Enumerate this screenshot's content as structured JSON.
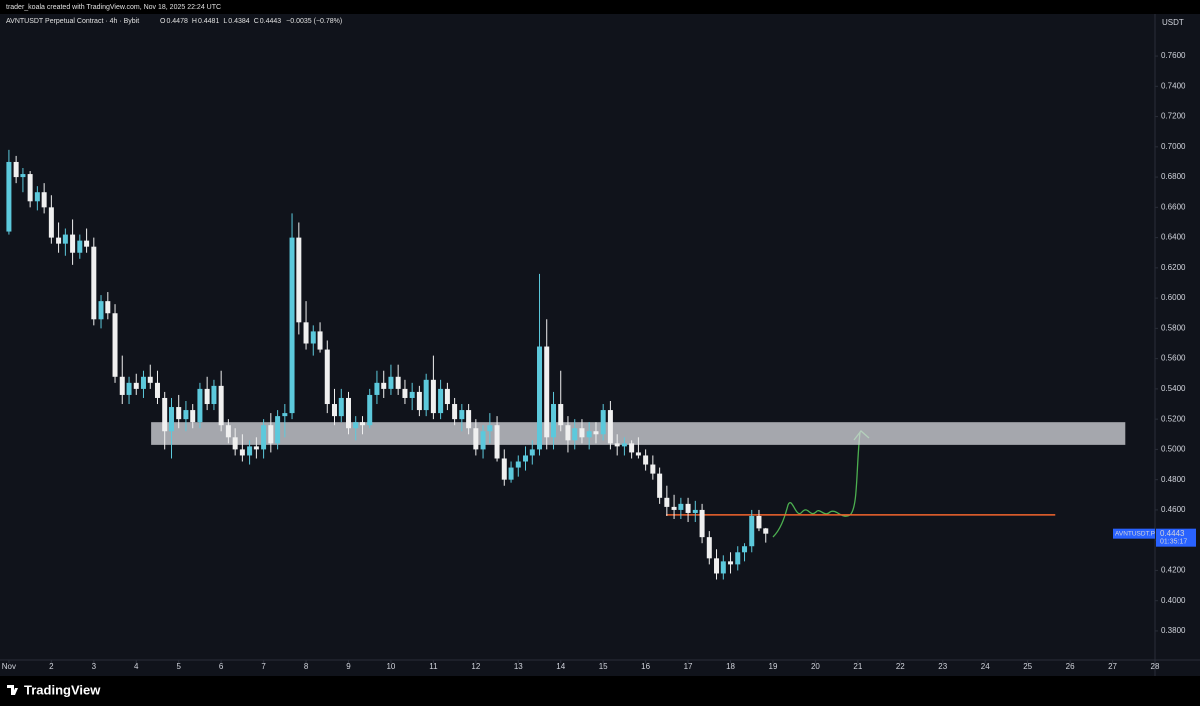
{
  "chart_data": {
    "type": "candlestick",
    "credit": "trader_koala created with TradingView.com, Nov 18, 2025 22:24 UTC",
    "symbol_title": "AVNTUSDT Perpetual Contract · 4h · Bybit",
    "legend_values": [
      {
        "label": "O",
        "value": "0.4478"
      },
      {
        "label": "H",
        "value": "0.4481"
      },
      {
        "label": "L",
        "value": "0.4384"
      },
      {
        "label": "C",
        "value": "0.4443"
      },
      {
        "label": "",
        "value": "−0.0035 (−0.78%)"
      }
    ],
    "axis_unit": "USDT",
    "price_tag": {
      "symbol": "AVNTUSDT.P",
      "value": 0.4443,
      "timer": "01:35:17",
      "color": "#2962ff"
    },
    "footer_brand": "TradingView",
    "up_color": "#5cc9dc",
    "down_color": "#f0f0f0",
    "x": [
      1,
      1.17,
      1.33,
      1.5,
      1.67,
      1.83,
      2,
      2.17,
      2.33,
      2.5,
      2.67,
      2.83,
      3,
      3.17,
      3.33,
      3.5,
      3.67,
      3.83,
      4,
      4.17,
      4.33,
      4.5,
      4.67,
      4.83,
      5,
      5.17,
      5.33,
      5.5,
      5.67,
      5.83,
      6,
      6.17,
      6.33,
      6.5,
      6.67,
      6.83,
      7,
      7.17,
      7.33,
      7.5,
      7.67,
      7.83,
      8,
      8.17,
      8.33,
      8.5,
      8.67,
      8.83,
      9,
      9.17,
      9.33,
      9.5,
      9.67,
      9.83,
      10,
      10.17,
      10.33,
      10.5,
      10.67,
      10.83,
      11,
      11.17,
      11.33,
      11.5,
      11.67,
      11.83,
      12,
      12.17,
      12.33,
      12.5,
      12.67,
      12.83,
      13,
      13.17,
      13.33,
      13.5,
      13.67,
      13.83,
      14,
      14.17,
      14.33,
      14.5,
      14.67,
      14.83,
      15,
      15.17,
      15.33,
      15.5,
      15.67,
      15.83,
      16,
      16.17,
      16.33,
      16.5,
      16.67,
      16.83,
      17,
      17.17,
      17.33,
      17.5,
      17.67,
      17.83,
      18,
      18.17,
      18.33,
      18.5,
      18.67,
      18.83
    ],
    "open": [
      0.644,
      0.69,
      0.68,
      0.682,
      0.664,
      0.67,
      0.66,
      0.64,
      0.636,
      0.642,
      0.63,
      0.638,
      0.634,
      0.586,
      0.598,
      0.59,
      0.548,
      0.536,
      0.544,
      0.54,
      0.548,
      0.544,
      0.534,
      0.512,
      0.528,
      0.52,
      0.526,
      0.518,
      0.54,
      0.53,
      0.542,
      0.516,
      0.508,
      0.5,
      0.496,
      0.502,
      0.5,
      0.516,
      0.504,
      0.522,
      0.524,
      0.64,
      0.584,
      0.57,
      0.578,
      0.566,
      0.53,
      0.522,
      0.534,
      0.514,
      0.518,
      0.516,
      0.536,
      0.544,
      0.54,
      0.548,
      0.54,
      0.534,
      0.538,
      0.526,
      0.546,
      0.524,
      0.54,
      0.53,
      0.52,
      0.526,
      0.514,
      0.5,
      0.512,
      0.516,
      0.494,
      0.48,
      0.488,
      0.492,
      0.496,
      0.5,
      0.568,
      0.508,
      0.53,
      0.516,
      0.506,
      0.514,
      0.508,
      0.512,
      0.51,
      0.526,
      0.504,
      0.502,
      0.504,
      0.498,
      0.496,
      0.49,
      0.484,
      0.468,
      0.462,
      0.46,
      0.464,
      0.458,
      0.46,
      0.442,
      0.428,
      0.418,
      0.426,
      0.424,
      0.432,
      0.436,
      0.456,
      0.4478
    ],
    "high": [
      0.698,
      0.694,
      0.686,
      0.684,
      0.674,
      0.676,
      0.668,
      0.65,
      0.646,
      0.652,
      0.642,
      0.646,
      0.64,
      0.602,
      0.604,
      0.596,
      0.562,
      0.548,
      0.55,
      0.552,
      0.556,
      0.552,
      0.538,
      0.534,
      0.536,
      0.532,
      0.53,
      0.544,
      0.548,
      0.546,
      0.552,
      0.52,
      0.514,
      0.51,
      0.506,
      0.508,
      0.52,
      0.524,
      0.526,
      0.53,
      0.656,
      0.65,
      0.598,
      0.582,
      0.584,
      0.572,
      0.54,
      0.54,
      0.538,
      0.522,
      0.522,
      0.54,
      0.552,
      0.552,
      0.556,
      0.556,
      0.546,
      0.544,
      0.542,
      0.55,
      0.562,
      0.546,
      0.544,
      0.534,
      0.53,
      0.53,
      0.52,
      0.516,
      0.524,
      0.522,
      0.5,
      0.492,
      0.496,
      0.502,
      0.506,
      0.616,
      0.586,
      0.538,
      0.552,
      0.522,
      0.52,
      0.52,
      0.518,
      0.518,
      0.53,
      0.532,
      0.51,
      0.508,
      0.506,
      0.508,
      0.5,
      0.496,
      0.488,
      0.476,
      0.47,
      0.468,
      0.468,
      0.466,
      0.464,
      0.446,
      0.434,
      0.43,
      0.432,
      0.436,
      0.438,
      0.46,
      0.46,
      0.4481
    ],
    "low": [
      0.642,
      0.676,
      0.67,
      0.66,
      0.658,
      0.656,
      0.636,
      0.63,
      0.628,
      0.622,
      0.626,
      0.63,
      0.582,
      0.58,
      0.586,
      0.544,
      0.53,
      0.53,
      0.536,
      0.534,
      0.54,
      0.53,
      0.5,
      0.494,
      0.514,
      0.512,
      0.514,
      0.514,
      0.526,
      0.526,
      0.512,
      0.504,
      0.496,
      0.492,
      0.49,
      0.494,
      0.494,
      0.498,
      0.5,
      0.508,
      0.52,
      0.576,
      0.566,
      0.562,
      0.564,
      0.524,
      0.516,
      0.518,
      0.51,
      0.506,
      0.51,
      0.514,
      0.53,
      0.534,
      0.536,
      0.536,
      0.53,
      0.526,
      0.522,
      0.522,
      0.52,
      0.52,
      0.526,
      0.516,
      0.512,
      0.51,
      0.496,
      0.494,
      0.504,
      0.492,
      0.476,
      0.478,
      0.482,
      0.486,
      0.49,
      0.496,
      0.5,
      0.5,
      0.512,
      0.498,
      0.5,
      0.504,
      0.5,
      0.504,
      0.506,
      0.5,
      0.496,
      0.496,
      0.494,
      0.494,
      0.486,
      0.48,
      0.464,
      0.456,
      0.454,
      0.454,
      0.452,
      0.452,
      0.438,
      0.424,
      0.414,
      0.414,
      0.418,
      0.42,
      0.426,
      0.432,
      0.446,
      0.4384
    ],
    "close": [
      0.69,
      0.68,
      0.682,
      0.664,
      0.67,
      0.66,
      0.64,
      0.636,
      0.642,
      0.63,
      0.638,
      0.634,
      0.586,
      0.598,
      0.59,
      0.548,
      0.536,
      0.544,
      0.54,
      0.548,
      0.544,
      0.534,
      0.512,
      0.528,
      0.52,
      0.526,
      0.518,
      0.54,
      0.53,
      0.542,
      0.516,
      0.508,
      0.5,
      0.496,
      0.502,
      0.5,
      0.516,
      0.504,
      0.522,
      0.524,
      0.64,
      0.584,
      0.57,
      0.578,
      0.566,
      0.53,
      0.522,
      0.534,
      0.514,
      0.518,
      0.516,
      0.536,
      0.544,
      0.54,
      0.548,
      0.54,
      0.534,
      0.538,
      0.526,
      0.546,
      0.524,
      0.54,
      0.53,
      0.52,
      0.526,
      0.514,
      0.5,
      0.512,
      0.516,
      0.494,
      0.48,
      0.488,
      0.492,
      0.496,
      0.5,
      0.568,
      0.508,
      0.53,
      0.516,
      0.506,
      0.514,
      0.508,
      0.512,
      0.51,
      0.526,
      0.504,
      0.502,
      0.504,
      0.498,
      0.496,
      0.49,
      0.484,
      0.468,
      0.462,
      0.46,
      0.464,
      0.458,
      0.46,
      0.442,
      0.428,
      0.418,
      0.426,
      0.424,
      0.432,
      0.436,
      0.456,
      0.4478,
      0.4443
    ],
    "zone": {
      "x": [
        4.35,
        27.3
      ],
      "y": [
        0.503,
        0.518
      ],
      "color": "#d7d9df"
    },
    "level": {
      "x": [
        16.48,
        25.65
      ],
      "y": 0.4567,
      "color": "#f2642c"
    },
    "xlim": [
      0.79,
      28.0
    ],
    "xticks": [
      {
        "value": 1,
        "label": "Nov"
      },
      2,
      3,
      4,
      5,
      6,
      7,
      8,
      9,
      10,
      11,
      12,
      13,
      14,
      15,
      16,
      17,
      18,
      19,
      20,
      21,
      22,
      23,
      24,
      25,
      26,
      27,
      28
    ],
    "ylim": [
      0.3608,
      0.7878
    ],
    "yticks": [
      {
        "value": 0.38,
        "label": "0.3800"
      },
      {
        "value": 0.4,
        "label": "0.4000"
      },
      {
        "value": 0.42,
        "label": "0.4200"
      },
      {
        "value": 0.44,
        "label": "0.4400"
      },
      {
        "value": 0.46,
        "label": "0.4600"
      },
      {
        "value": 0.48,
        "label": "0.4800"
      },
      {
        "value": 0.5,
        "label": "0.5000"
      },
      {
        "value": 0.52,
        "label": "0.5200"
      },
      {
        "value": 0.54,
        "label": "0.5400"
      },
      {
        "value": 0.56,
        "label": "0.5600"
      },
      {
        "value": 0.58,
        "label": "0.5800"
      },
      {
        "value": 0.6,
        "label": "0.6000"
      },
      {
        "value": 0.62,
        "label": "0.6200"
      },
      {
        "value": 0.64,
        "label": "0.6400"
      },
      {
        "value": 0.66,
        "label": "0.6600"
      },
      {
        "value": 0.68,
        "label": "0.6800"
      },
      {
        "value": 0.7,
        "label": "0.7000"
      },
      {
        "value": 0.72,
        "label": "0.7200"
      },
      {
        "value": 0.74,
        "label": "0.7400"
      },
      {
        "value": 0.76,
        "label": "0.7600"
      }
    ]
  }
}
